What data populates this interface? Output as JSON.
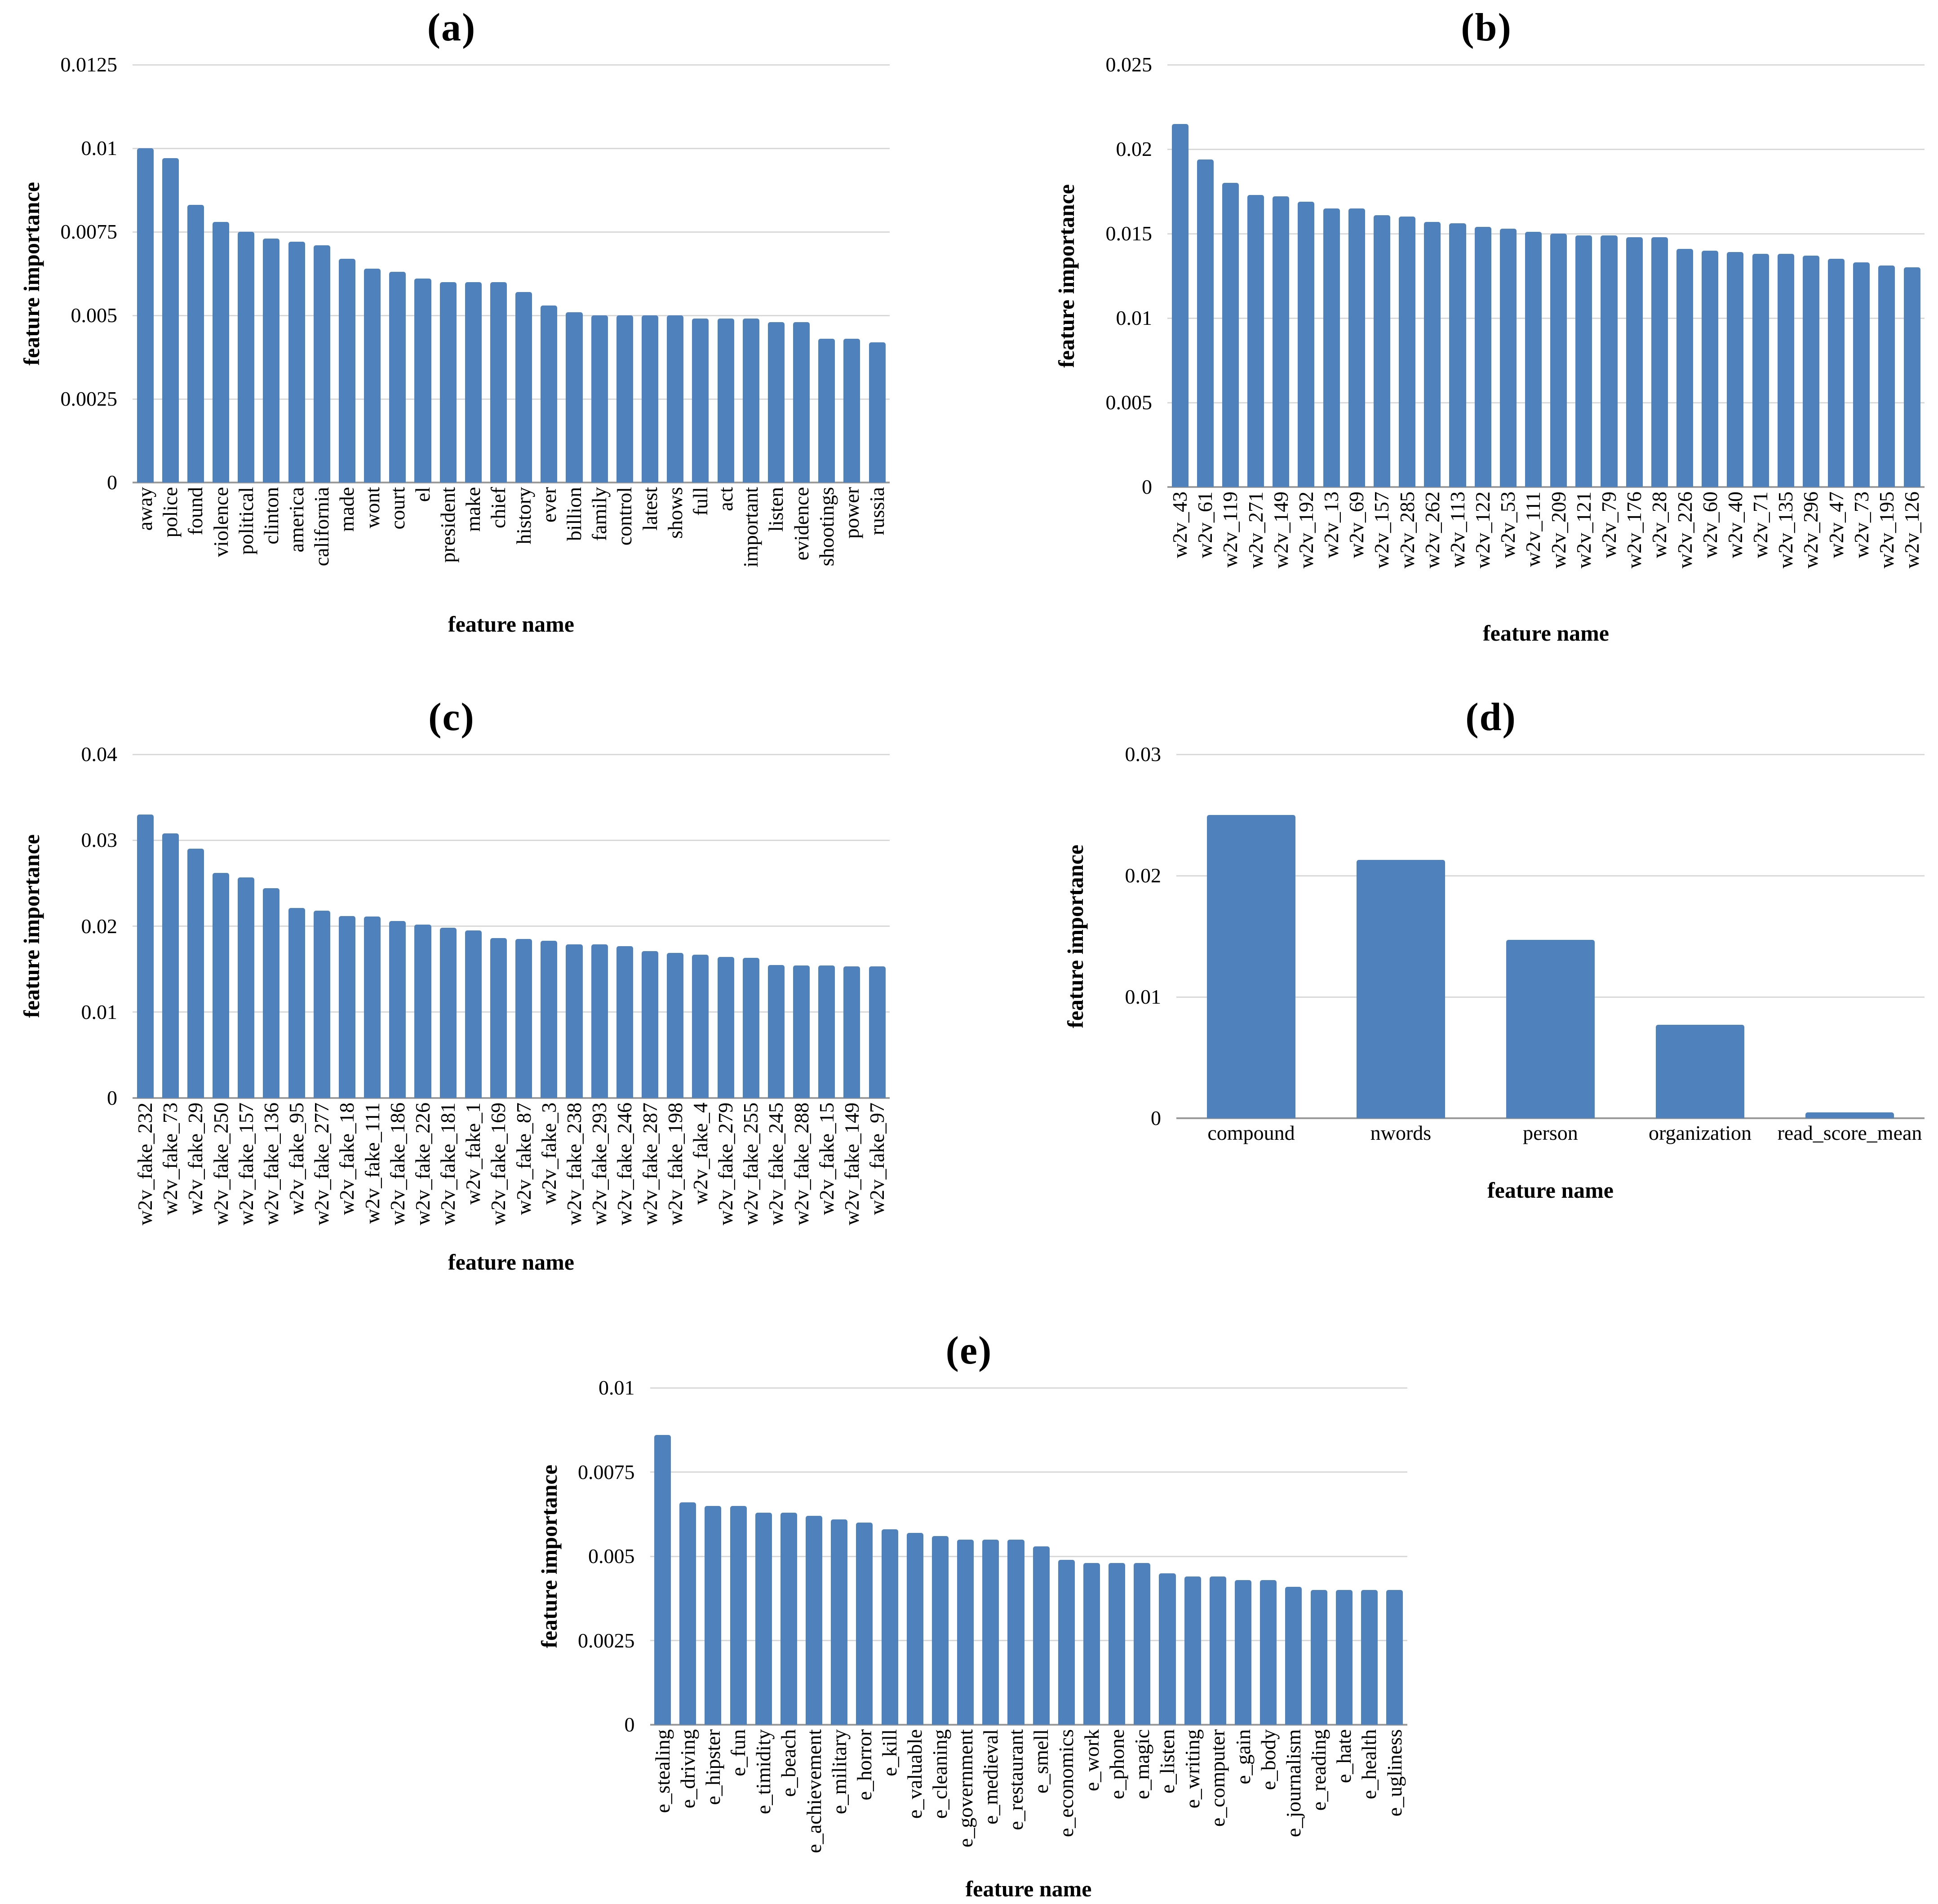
{
  "figure": {
    "bar_color": "#4f81bd",
    "gridline_color": "#d9d9d9",
    "axis_line_color": "#9b9b9b",
    "text_color": "#000000"
  },
  "chart_data": [
    {
      "type": "bar",
      "title": "(a)",
      "xlabel": "feature name",
      "ylabel": "feature importance",
      "ylim": [
        0,
        0.0125
      ],
      "grid": true,
      "legend": "none",
      "yticks": [
        {
          "value": 0,
          "label": "0"
        },
        {
          "value": 0.0025,
          "label": "0.0025"
        },
        {
          "value": 0.005,
          "label": "0.005"
        },
        {
          "value": 0.0075,
          "label": "0.0075"
        },
        {
          "value": 0.01,
          "label": "0.01"
        },
        {
          "value": 0.0125,
          "label": "0.0125"
        }
      ],
      "categories": [
        "away",
        "police",
        "found",
        "violence",
        "political",
        "clinton",
        "america",
        "california",
        "made",
        "wont",
        "court",
        "el",
        "president",
        "make",
        "chief",
        "history",
        "ever",
        "billion",
        "family",
        "control",
        "latest",
        "shows",
        "full",
        "act",
        "important",
        "listen",
        "evidence",
        "shootings",
        "power",
        "russia"
      ],
      "values": [
        0.01,
        0.0097,
        0.0083,
        0.0078,
        0.0075,
        0.0073,
        0.0072,
        0.0071,
        0.0067,
        0.0064,
        0.0063,
        0.0061,
        0.006,
        0.006,
        0.006,
        0.0057,
        0.0053,
        0.0051,
        0.005,
        0.005,
        0.005,
        0.005,
        0.0049,
        0.0049,
        0.0049,
        0.0048,
        0.0048,
        0.0043,
        0.0043,
        0.0042
      ]
    },
    {
      "type": "bar",
      "title": "(b)",
      "xlabel": "feature name",
      "ylabel": "feature importance",
      "ylim": [
        0,
        0.025
      ],
      "grid": true,
      "legend": "none",
      "yticks": [
        {
          "value": 0,
          "label": "0"
        },
        {
          "value": 0.005,
          "label": "0.005"
        },
        {
          "value": 0.01,
          "label": "0.01"
        },
        {
          "value": 0.015,
          "label": "0.015"
        },
        {
          "value": 0.02,
          "label": "0.02"
        },
        {
          "value": 0.025,
          "label": "0.025"
        }
      ],
      "categories": [
        "w2v_43",
        "w2v_61",
        "w2v_119",
        "w2v_271",
        "w2v_149",
        "w2v_192",
        "w2v_13",
        "w2v_69",
        "w2v_157",
        "w2v_285",
        "w2v_262",
        "w2v_113",
        "w2v_122",
        "w2v_53",
        "w2v_111",
        "w2v_209",
        "w2v_121",
        "w2v_79",
        "w2v_176",
        "w2v_28",
        "w2v_226",
        "w2v_60",
        "w2v_40",
        "w2v_71",
        "w2v_135",
        "w2v_296",
        "w2v_47",
        "w2v_73",
        "w2v_195",
        "w2v_126"
      ],
      "values": [
        0.0215,
        0.0194,
        0.018,
        0.0173,
        0.0172,
        0.0169,
        0.0165,
        0.0165,
        0.0161,
        0.016,
        0.0157,
        0.0156,
        0.0154,
        0.0153,
        0.0151,
        0.015,
        0.0149,
        0.0149,
        0.0148,
        0.0148,
        0.0141,
        0.014,
        0.0139,
        0.0138,
        0.0138,
        0.0137,
        0.0135,
        0.0133,
        0.0131,
        0.013
      ]
    },
    {
      "type": "bar",
      "title": "(c)",
      "xlabel": "feature name",
      "ylabel": "feature importance",
      "ylim": [
        0,
        0.04
      ],
      "grid": true,
      "legend": "none",
      "yticks": [
        {
          "value": 0,
          "label": "0"
        },
        {
          "value": 0.01,
          "label": "0.01"
        },
        {
          "value": 0.02,
          "label": "0.02"
        },
        {
          "value": 0.03,
          "label": "0.03"
        },
        {
          "value": 0.04,
          "label": "0.04"
        }
      ],
      "categories": [
        "w2v_fake_232",
        "w2v_fake_73",
        "w2v_fake_29",
        "w2v_fake_250",
        "w2v_fake_157",
        "w2v_fake_136",
        "w2v_fake_95",
        "w2v_fake_277",
        "w2v_fake_18",
        "w2v_fake_111",
        "w2v_fake_186",
        "w2v_fake_226",
        "w2v_fake_181",
        "w2v_fake_1",
        "w2v_fake_169",
        "w2v_fake_87",
        "w2v_fake_3",
        "w2v_fake_238",
        "w2v_fake_293",
        "w2v_fake_246",
        "w2v_fake_287",
        "w2v_fake_198",
        "w2v_fake_4",
        "w2v_fake_279",
        "w2v_fake_255",
        "w2v_fake_245",
        "w2v_fake_288",
        "w2v_fake_15",
        "w2v_fake_149",
        "w2v_fake_97"
      ],
      "values": [
        0.033,
        0.0308,
        0.029,
        0.0262,
        0.0257,
        0.0244,
        0.0221,
        0.0218,
        0.0212,
        0.0211,
        0.0206,
        0.0202,
        0.0198,
        0.0195,
        0.0186,
        0.0185,
        0.0183,
        0.0179,
        0.0179,
        0.0177,
        0.0171,
        0.0169,
        0.0167,
        0.0164,
        0.0163,
        0.0155,
        0.0154,
        0.0154,
        0.0153,
        0.0153
      ]
    },
    {
      "type": "bar",
      "title": "(d)",
      "xlabel": "feature name",
      "ylabel": "feature importance",
      "ylim": [
        0,
        0.03
      ],
      "grid": true,
      "legend": "none",
      "yticks": [
        {
          "value": 0,
          "label": "0"
        },
        {
          "value": 0.01,
          "label": "0.01"
        },
        {
          "value": 0.02,
          "label": "0.02"
        },
        {
          "value": 0.03,
          "label": "0.03"
        }
      ],
      "categories": [
        "compound",
        "nwords",
        "person",
        "organization",
        "read_score_mean"
      ],
      "values": [
        0.025,
        0.0213,
        0.0147,
        0.0077,
        0.0005
      ]
    },
    {
      "type": "bar",
      "title": "(e)",
      "xlabel": "feature name",
      "ylabel": "feature importance",
      "ylim": [
        0,
        0.01
      ],
      "grid": true,
      "legend": "none",
      "yticks": [
        {
          "value": 0,
          "label": "0"
        },
        {
          "value": 0.0025,
          "label": "0.0025"
        },
        {
          "value": 0.005,
          "label": "0.005"
        },
        {
          "value": 0.0075,
          "label": "0.0075"
        },
        {
          "value": 0.01,
          "label": "0.01"
        }
      ],
      "categories": [
        "e_stealing",
        "e_driving",
        "e_hipster",
        "e_fun",
        "e_timidity",
        "e_beach",
        "e_achievement",
        "e_military",
        "e_horror",
        "e_kill",
        "e_valuable",
        "e_cleaning",
        "e_government",
        "e_medieval",
        "e_restaurant",
        "e_smell",
        "e_economics",
        "e_work",
        "e_phone",
        "e_magic",
        "e_listen",
        "e_writing",
        "e_computer",
        "e_gain",
        "e_body",
        "e_journalism",
        "e_reading",
        "e_hate",
        "e_health",
        "e_ugliness"
      ],
      "values": [
        0.0086,
        0.0066,
        0.0065,
        0.0065,
        0.0063,
        0.0063,
        0.0062,
        0.0061,
        0.006,
        0.0058,
        0.0057,
        0.0056,
        0.0055,
        0.0055,
        0.0055,
        0.0053,
        0.0049,
        0.0048,
        0.0048,
        0.0048,
        0.0045,
        0.0044,
        0.0044,
        0.0043,
        0.0043,
        0.0041,
        0.004,
        0.004,
        0.004,
        0.004
      ]
    }
  ]
}
